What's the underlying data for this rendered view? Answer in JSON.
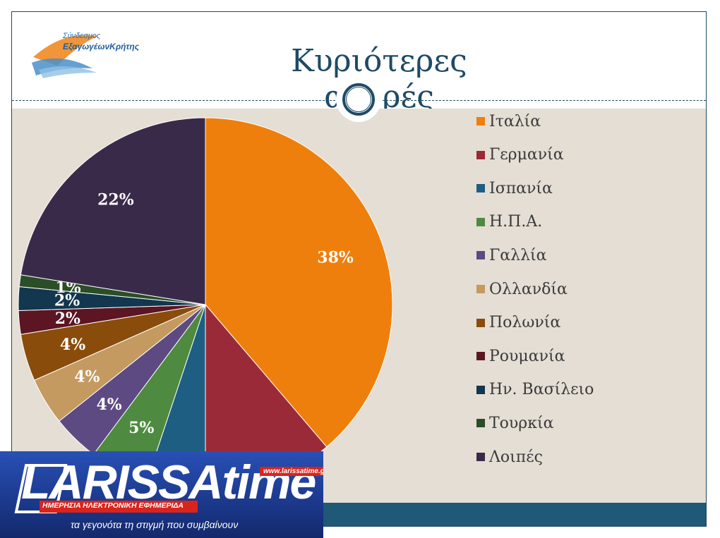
{
  "slide": {
    "title": "Κυριότερες αγορές",
    "logo": {
      "line1": "Σύνδεσμος",
      "line2": "ΕξαγωγέωνΚρήτης"
    }
  },
  "chart_data": {
    "type": "pie",
    "title": "Κυριότερες αγορές",
    "legend_position": "right",
    "categories": [
      "Ιταλία",
      "Γερμανία",
      "Ισπανία",
      "Η.Π.Α.",
      "Γαλλία",
      "Ολλανδία",
      "Πολωνία",
      "Ρουμανία",
      "Ην. Βασίλειο",
      "Τουρκία",
      "Λοιπές"
    ],
    "values": [
      38,
      11,
      5,
      5,
      4,
      4,
      4,
      2,
      2,
      1,
      22
    ],
    "labels": [
      "38%",
      "",
      "",
      "5%",
      "4%",
      "4%",
      "4%",
      "2%",
      "2%",
      "1%",
      "22%"
    ],
    "colors": [
      "#ef7f0c",
      "#9b2a38",
      "#1e5e82",
      "#4e8a3f",
      "#5e4a82",
      "#c49a61",
      "#8a4c0b",
      "#5c1522",
      "#12374e",
      "#2b4d27",
      "#3a2a4a"
    ]
  },
  "banner": {
    "brand": "LARISSAtime",
    "url": "www.larissatime.gr",
    "strip": "ΗΜΕΡΗΣΙΑ ΗΛΕΚΤΡΟΝΙΚΗ ΕΦΗΜΕΡΙΔΑ",
    "slogan": "τα γεγονότα τη στιγμή που συμβαίνουν"
  }
}
